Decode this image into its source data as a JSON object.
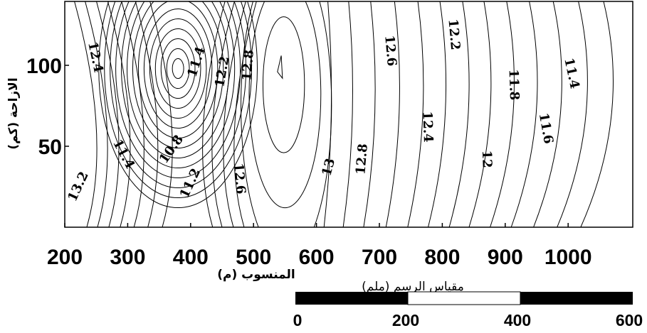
{
  "chart_data": {
    "type": "contour",
    "xlabel": "المنسوب (م)",
    "ylabel": "الازاحة (كم)",
    "xlim": [
      200,
      1090
    ],
    "ylim": [
      0,
      135
    ],
    "x_ticks": [
      "200",
      "300",
      "400",
      "500",
      "600",
      "700",
      "800",
      "900",
      "1000"
    ],
    "y_ticks": [
      "50",
      "100"
    ],
    "grid": false,
    "contour_labels": [
      {
        "text": "12.4",
        "x": 248,
        "y": 105,
        "angle": 78
      },
      {
        "text": "13.2",
        "x": 222,
        "y": 25,
        "angle": -65
      },
      {
        "text": "11.4",
        "x": 293,
        "y": 45,
        "angle": 62
      },
      {
        "text": "10.8",
        "x": 370,
        "y": 48,
        "angle": -55
      },
      {
        "text": "11.2",
        "x": 400,
        "y": 27,
        "angle": -65
      },
      {
        "text": "11.4",
        "x": 410,
        "y": 102,
        "angle": -72
      },
      {
        "text": "12.2",
        "x": 451,
        "y": 96,
        "angle": -80
      },
      {
        "text": "12.8",
        "x": 492,
        "y": 100,
        "angle": -85
      },
      {
        "text": "12.6",
        "x": 477,
        "y": 30,
        "angle": 85
      },
      {
        "text": "13",
        "x": 620,
        "y": 37,
        "angle": -75
      },
      {
        "text": "12.6",
        "x": 717,
        "y": 109,
        "angle": 85
      },
      {
        "text": "12.8",
        "x": 673,
        "y": 42,
        "angle": -85
      },
      {
        "text": "12.2",
        "x": 818,
        "y": 119,
        "angle": 85
      },
      {
        "text": "12.4",
        "x": 776,
        "y": 62,
        "angle": 88
      },
      {
        "text": "12",
        "x": 870,
        "y": 42,
        "angle": 88
      },
      {
        "text": "11.8",
        "x": 913,
        "y": 88,
        "angle": 88
      },
      {
        "text": "11.6",
        "x": 964,
        "y": 61,
        "angle": 80
      },
      {
        "text": "11.4",
        "x": 1005,
        "y": 95,
        "angle": 78
      }
    ]
  },
  "scale_bar": {
    "title": "مقياس الرسم (ملم)",
    "ticks": [
      "0",
      "200",
      "400",
      "600"
    ]
  }
}
